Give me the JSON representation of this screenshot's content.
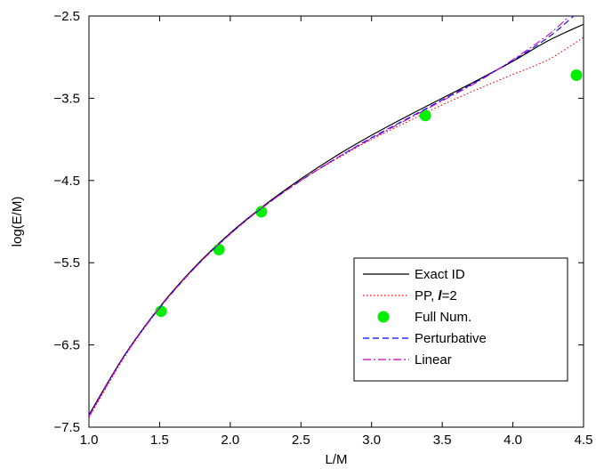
{
  "chart_data": {
    "type": "line",
    "title": "",
    "xlabel": "L/M",
    "ylabel": "log(E/M)",
    "xlim": [
      1.0,
      4.5
    ],
    "ylim": [
      -7.5,
      -2.5
    ],
    "xticks": [
      "1.0",
      "1.5",
      "2.0",
      "2.5",
      "3.0",
      "3.5",
      "4.0",
      "4.5"
    ],
    "yticks": [
      "-7.5",
      "-6.5",
      "-5.5",
      "-4.5",
      "-3.5",
      "-2.5"
    ],
    "grid": false,
    "legend_position": "bottom-right",
    "series": [
      {
        "name": "Exact ID",
        "style": "solid",
        "color": "#000000",
        "x": [
          1.0,
          1.25,
          1.5,
          1.75,
          2.0,
          2.25,
          2.5,
          2.75,
          3.0,
          3.25,
          3.5,
          3.75,
          4.0,
          4.25,
          4.5
        ],
        "y": [
          -7.35,
          -6.63,
          -6.04,
          -5.55,
          -5.14,
          -4.79,
          -4.48,
          -4.2,
          -3.95,
          -3.72,
          -3.5,
          -3.28,
          -3.05,
          -2.8,
          -2.6
        ]
      },
      {
        "name": "PP, ",
        "name_italic": "l",
        "name_suffix": "=2",
        "style": "dotted",
        "color": "#ff0000",
        "x": [
          1.0,
          1.25,
          1.5,
          1.75,
          2.0,
          2.25,
          2.5,
          2.75,
          3.0,
          3.25,
          3.5,
          3.75,
          4.0,
          4.25,
          4.5
        ],
        "y": [
          -7.38,
          -6.65,
          -6.05,
          -5.56,
          -5.15,
          -4.8,
          -4.5,
          -4.24,
          -4.0,
          -3.79,
          -3.58,
          -3.39,
          -3.21,
          -3.03,
          -2.76
        ]
      },
      {
        "name": "Full Num.",
        "style": "markers",
        "color": "#00ee00",
        "x": [
          1.51,
          1.92,
          2.22,
          3.38,
          4.45
        ],
        "y": [
          -6.09,
          -5.34,
          -4.88,
          -3.71,
          -3.22
        ]
      },
      {
        "name": "Perturbative",
        "style": "dashed",
        "color": "#0000ff",
        "x": [
          1.0,
          1.25,
          1.5,
          1.75,
          2.0,
          2.25,
          2.5,
          2.75,
          3.0,
          3.25,
          3.5,
          3.75,
          4.0,
          4.25,
          4.43
        ],
        "y": [
          -7.36,
          -6.63,
          -6.05,
          -5.56,
          -5.15,
          -4.8,
          -4.5,
          -4.23,
          -3.98,
          -3.75,
          -3.52,
          -3.29,
          -3.04,
          -2.76,
          -2.5
        ]
      },
      {
        "name": "Linear",
        "style": "dashdot",
        "color": "#cc00cc",
        "x": [
          1.0,
          1.25,
          1.5,
          1.75,
          2.0,
          2.25,
          2.5,
          2.75,
          3.0,
          3.25,
          3.5,
          3.75,
          4.0,
          4.25,
          4.4
        ],
        "y": [
          -7.37,
          -6.64,
          -6.05,
          -5.56,
          -5.15,
          -4.8,
          -4.5,
          -4.23,
          -3.99,
          -3.76,
          -3.53,
          -3.3,
          -3.03,
          -2.73,
          -2.5
        ]
      }
    ]
  }
}
